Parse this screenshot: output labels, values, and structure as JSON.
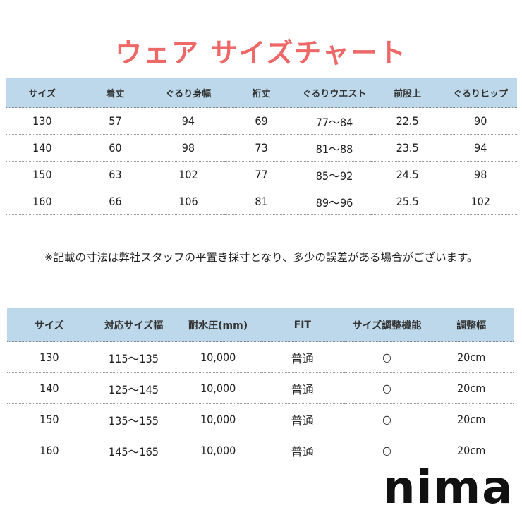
{
  "title": "ウェア サイズチャート",
  "colors": {
    "title": "#ee6868",
    "header_bg": "#bcd8ea"
  },
  "table1": {
    "headers": [
      "サイズ",
      "着丈",
      "ぐるり身幅",
      "裄丈",
      "ぐるりウエスト",
      "前股上",
      "ぐるりヒップ"
    ],
    "rows": [
      [
        "130",
        "57",
        "94",
        "69",
        "77～84",
        "22.5",
        "90"
      ],
      [
        "140",
        "60",
        "98",
        "73",
        "81～88",
        "23.5",
        "94"
      ],
      [
        "150",
        "63",
        "102",
        "77",
        "85～92",
        "24.5",
        "98"
      ],
      [
        "160",
        "66",
        "106",
        "81",
        "89～96",
        "25.5",
        "102"
      ]
    ]
  },
  "note": "※記載の寸法は弊社スタッフの平置き採寸となり、多少の誤差がある場合がございます。",
  "table2": {
    "headers": [
      "サイズ",
      "対応サイズ幅",
      "耐水圧(mm)",
      "FIT",
      "サイズ調整機能",
      "調整幅"
    ],
    "rows": [
      [
        "130",
        "115～135",
        "10,000",
        "普通",
        "○",
        "20cm"
      ],
      [
        "140",
        "125～145",
        "10,000",
        "普通",
        "○",
        "20cm"
      ],
      [
        "150",
        "135～155",
        "10,000",
        "普通",
        "○",
        "20cm"
      ],
      [
        "160",
        "145～165",
        "10,000",
        "普通",
        "○",
        "20cm"
      ]
    ]
  },
  "logo": "nima"
}
